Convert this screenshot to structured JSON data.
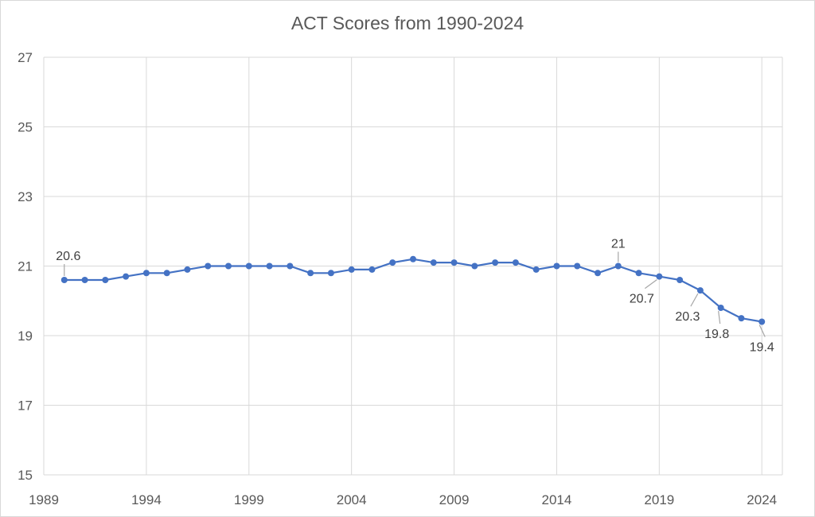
{
  "chart_data": {
    "type": "scatter",
    "title": "ACT Scores from 1990-2024",
    "xlabel": "",
    "ylabel": "",
    "xlim": [
      1989,
      2025
    ],
    "ylim": [
      15,
      27
    ],
    "x_ticks": [
      1989,
      1994,
      1999,
      2004,
      2009,
      2014,
      2019,
      2024
    ],
    "y_ticks": [
      15,
      17,
      19,
      21,
      23,
      25,
      27
    ],
    "grid": true,
    "legend": "none",
    "line_color": "#4472c4",
    "series": [
      {
        "x": [
          1990,
          1991,
          1992,
          1993,
          1994,
          1995,
          1996,
          1997,
          1998,
          1999,
          2000,
          2001,
          2002,
          2003,
          2004,
          2005,
          2006,
          2007,
          2008,
          2009,
          2010,
          2011,
          2012,
          2013,
          2014,
          2015,
          2016,
          2017,
          2018,
          2019,
          2020,
          2021,
          2022,
          2023,
          2024
        ],
        "y": [
          20.6,
          20.6,
          20.6,
          20.7,
          20.8,
          20.8,
          20.9,
          21.0,
          21.0,
          21.0,
          21.0,
          21.0,
          20.8,
          20.8,
          20.9,
          20.9,
          21.1,
          21.2,
          21.1,
          21.1,
          21.0,
          21.1,
          21.1,
          20.9,
          21.0,
          21.0,
          20.8,
          21.0,
          20.8,
          20.7,
          20.6,
          20.3,
          19.8,
          19.5,
          19.4
        ]
      }
    ],
    "data_labels": [
      {
        "x": 1990,
        "y": 20.6,
        "text": "20.6"
      },
      {
        "x": 2017,
        "y": 21.0,
        "text": "21"
      },
      {
        "x": 2019,
        "y": 20.7,
        "text": "20.7"
      },
      {
        "x": 2021,
        "y": 20.3,
        "text": "20.3"
      },
      {
        "x": 2022,
        "y": 19.8,
        "text": "19.8"
      },
      {
        "x": 2024,
        "y": 19.4,
        "text": "19.4"
      }
    ]
  }
}
